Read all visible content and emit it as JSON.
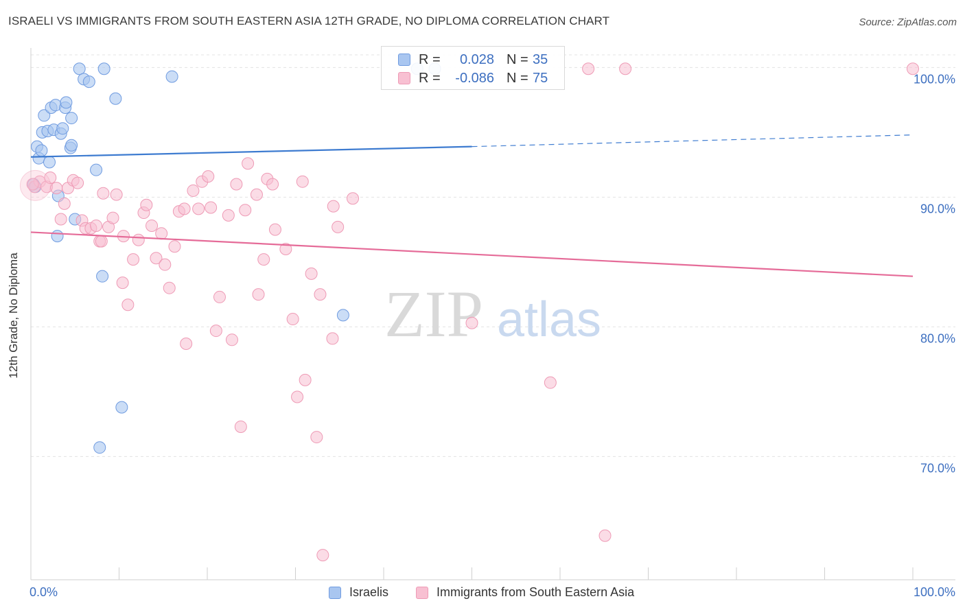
{
  "title": "ISRAELI VS IMMIGRANTS FROM SOUTH EASTERN ASIA 12TH GRADE, NO DIPLOMA CORRELATION CHART",
  "source": "Source: ZipAtlas.com",
  "watermark": {
    "zip": "ZIP",
    "atlas": "atlas"
  },
  "colors": {
    "israelis_fill": "#a9c6f0",
    "israelis_stroke": "#6f9be0",
    "israelis_line": "#3d7bd0",
    "sea_fill": "#f8c0d2",
    "sea_stroke": "#ee9ab5",
    "sea_line": "#e56b98",
    "axis_label": "#3d6fc0",
    "grid": "#e3e3e3"
  },
  "legend": {
    "israelis": {
      "r_label": "R =",
      "r_value": "0.028",
      "n_label": "N =",
      "n_value": "35"
    },
    "sea": {
      "r_label": "R =",
      "r_value": "-0.086",
      "n_label": "N =",
      "n_value": "75"
    }
  },
  "chart_data": {
    "type": "scatter",
    "title": "ISRAELI VS IMMIGRANTS FROM SOUTH EASTERN ASIA 12TH GRADE, NO DIPLOMA CORRELATION CHART",
    "xlabel": "",
    "ylabel": "12th Grade, No Diploma",
    "xlim": [
      0,
      100
    ],
    "ylim": [
      60.5,
      101.5
    ],
    "x_tick_labels": [
      "0.0%",
      "100.0%"
    ],
    "y_ticks": [
      {
        "value": 70,
        "label": "70.0%"
      },
      {
        "value": 80,
        "label": "80.0%"
      },
      {
        "value": 90,
        "label": "90.0%"
      },
      {
        "value": 100,
        "label": "100.0%"
      }
    ],
    "grid": true,
    "legend_position": "top-center",
    "series": [
      {
        "name": "Israelis",
        "trend": {
          "x0": 0,
          "y0": 93.1,
          "x1": 50,
          "y1": 93.9,
          "dashed_to_x": 100,
          "dashed_to_y": 94.8
        },
        "points": [
          [
            0.3,
            91.0
          ],
          [
            0.5,
            90.8
          ],
          [
            0.7,
            93.9
          ],
          [
            0.9,
            93.0
          ],
          [
            1.2,
            93.6
          ],
          [
            1.3,
            95.0
          ],
          [
            1.5,
            96.3
          ],
          [
            1.9,
            95.1
          ],
          [
            2.1,
            92.7
          ],
          [
            2.3,
            96.9
          ],
          [
            2.6,
            95.2
          ],
          [
            2.8,
            97.1
          ],
          [
            3.0,
            87.0
          ],
          [
            3.1,
            90.1
          ],
          [
            3.4,
            94.9
          ],
          [
            3.6,
            95.3
          ],
          [
            3.9,
            96.9
          ],
          [
            4.0,
            97.3
          ],
          [
            4.5,
            93.8
          ],
          [
            4.6,
            96.1
          ],
          [
            5.0,
            88.3
          ],
          [
            5.5,
            99.9
          ],
          [
            6.0,
            99.1
          ],
          [
            6.6,
            98.9
          ],
          [
            7.4,
            92.1
          ],
          [
            8.1,
            83.9
          ],
          [
            8.3,
            99.9
          ],
          [
            9.6,
            97.6
          ],
          [
            10.3,
            73.8
          ],
          [
            7.8,
            70.7
          ],
          [
            4.6,
            94.0
          ],
          [
            16.0,
            99.3
          ],
          [
            35.4,
            80.9
          ],
          [
            43.8,
            99.9
          ],
          [
            45.8,
            99.9
          ]
        ]
      },
      {
        "name": "Immigrants from South Eastern Asia",
        "trend": {
          "x0": 0,
          "y0": 87.3,
          "x1": 100,
          "y1": 83.9
        },
        "points": [
          [
            0.4,
            90.8
          ],
          [
            1.0,
            91.2
          ],
          [
            1.8,
            90.8
          ],
          [
            2.2,
            91.5
          ],
          [
            2.9,
            90.7
          ],
          [
            3.4,
            88.3
          ],
          [
            3.8,
            89.5
          ],
          [
            4.2,
            90.7
          ],
          [
            4.8,
            91.3
          ],
          [
            5.3,
            91.1
          ],
          [
            5.8,
            88.2
          ],
          [
            6.2,
            87.6
          ],
          [
            6.8,
            87.6
          ],
          [
            7.4,
            87.8
          ],
          [
            7.8,
            86.6
          ],
          [
            8.2,
            90.3
          ],
          [
            8.8,
            87.7
          ],
          [
            9.3,
            88.4
          ],
          [
            9.7,
            90.2
          ],
          [
            10.4,
            83.4
          ],
          [
            10.5,
            87.0
          ],
          [
            11.0,
            81.7
          ],
          [
            11.6,
            85.2
          ],
          [
            12.2,
            86.7
          ],
          [
            12.8,
            88.8
          ],
          [
            13.1,
            89.4
          ],
          [
            13.7,
            87.8
          ],
          [
            14.2,
            85.3
          ],
          [
            14.8,
            87.2
          ],
          [
            15.2,
            84.8
          ],
          [
            15.7,
            83.0
          ],
          [
            16.3,
            86.2
          ],
          [
            16.8,
            88.9
          ],
          [
            17.4,
            89.1
          ],
          [
            17.6,
            78.7
          ],
          [
            18.4,
            90.5
          ],
          [
            19.0,
            89.1
          ],
          [
            19.4,
            91.2
          ],
          [
            20.1,
            91.6
          ],
          [
            20.4,
            89.2
          ],
          [
            21.0,
            79.7
          ],
          [
            21.4,
            82.3
          ],
          [
            22.4,
            88.6
          ],
          [
            22.8,
            79.0
          ],
          [
            23.3,
            91.0
          ],
          [
            23.8,
            72.3
          ],
          [
            24.3,
            89.0
          ],
          [
            24.6,
            92.6
          ],
          [
            25.6,
            90.2
          ],
          [
            25.8,
            82.5
          ],
          [
            26.4,
            85.2
          ],
          [
            26.8,
            91.4
          ],
          [
            27.4,
            91.0
          ],
          [
            27.7,
            87.5
          ],
          [
            28.9,
            86.0
          ],
          [
            29.7,
            80.6
          ],
          [
            30.2,
            74.6
          ],
          [
            30.8,
            91.2
          ],
          [
            31.1,
            75.9
          ],
          [
            31.8,
            84.1
          ],
          [
            32.4,
            71.5
          ],
          [
            32.8,
            82.5
          ],
          [
            33.1,
            62.4
          ],
          [
            34.2,
            79.1
          ],
          [
            34.3,
            89.3
          ],
          [
            34.8,
            87.7
          ],
          [
            36.5,
            89.9
          ],
          [
            50.0,
            80.3
          ],
          [
            58.9,
            75.7
          ],
          [
            63.2,
            99.9
          ],
          [
            65.1,
            63.9
          ],
          [
            67.4,
            99.9
          ],
          [
            100.0,
            99.9
          ],
          [
            0.2,
            91.0
          ],
          [
            8.0,
            86.6
          ]
        ]
      }
    ]
  },
  "bottom_legend": {
    "israelis": "Israelis",
    "sea": "Immigrants from South Eastern Asia"
  }
}
